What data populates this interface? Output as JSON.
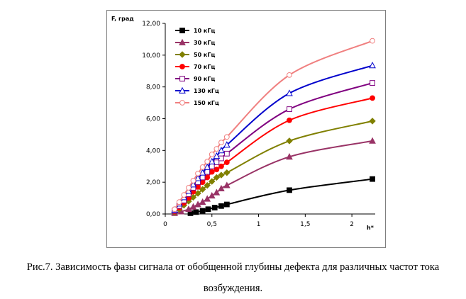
{
  "chart_data": {
    "type": "line",
    "ylabel": "F, град",
    "xlabel": "h*",
    "xlim": [
      0,
      2.25
    ],
    "ylim": [
      0,
      12
    ],
    "x_ticks": [
      0,
      0.5,
      1,
      1.5,
      2
    ],
    "x_tick_labels": [
      "0",
      "0,5",
      "1",
      "1,5",
      "2"
    ],
    "y_ticks": [
      0,
      2,
      4,
      6,
      8,
      10,
      12
    ],
    "y_tick_labels": [
      "0,00",
      "2,00",
      "4,00",
      "6,00",
      "8,00",
      "10,00",
      "12,00"
    ],
    "grid": false,
    "legend_position": "top-left",
    "series": [
      {
        "name": "10 кГц",
        "color": "#000000",
        "marker": "square-filled",
        "x": [
          0.27,
          0.33,
          0.4,
          0.46,
          0.53,
          0.6,
          0.66,
          1.33,
          2.22
        ],
        "y": [
          0.05,
          0.12,
          0.2,
          0.3,
          0.4,
          0.5,
          0.6,
          1.5,
          2.2
        ]
      },
      {
        "name": "30 кГц",
        "color": "#993366",
        "marker": "triangle-filled",
        "x": [
          0.1,
          0.17,
          0.25,
          0.3,
          0.35,
          0.4,
          0.45,
          0.5,
          0.55,
          0.6,
          0.66,
          1.33,
          2.22
        ],
        "y": [
          0.05,
          0.15,
          0.3,
          0.45,
          0.6,
          0.75,
          0.95,
          1.15,
          1.35,
          1.6,
          1.8,
          3.6,
          4.6
        ]
      },
      {
        "name": "50 кГц",
        "color": "#808000",
        "marker": "diamond-filled",
        "x": [
          0.1,
          0.15,
          0.2,
          0.25,
          0.3,
          0.35,
          0.4,
          0.45,
          0.5,
          0.55,
          0.6,
          0.66,
          1.33,
          2.22
        ],
        "y": [
          0.1,
          0.3,
          0.55,
          0.8,
          1.05,
          1.3,
          1.55,
          1.8,
          2.05,
          2.3,
          2.45,
          2.6,
          4.6,
          5.85
        ]
      },
      {
        "name": "70 кГц",
        "color": "#ff0000",
        "marker": "circle-filled",
        "x": [
          0.1,
          0.15,
          0.2,
          0.25,
          0.3,
          0.35,
          0.4,
          0.45,
          0.5,
          0.55,
          0.6,
          0.66,
          1.33,
          2.22
        ],
        "y": [
          0.15,
          0.4,
          0.7,
          1.0,
          1.4,
          1.7,
          2.0,
          2.3,
          2.65,
          2.8,
          3.0,
          3.25,
          5.9,
          7.3
        ]
      },
      {
        "name": "90 кГц",
        "color": "#800080",
        "marker": "square-open",
        "x": [
          0.1,
          0.15,
          0.2,
          0.25,
          0.3,
          0.35,
          0.4,
          0.45,
          0.5,
          0.55,
          0.6,
          0.66,
          1.33,
          2.22
        ],
        "y": [
          0.2,
          0.5,
          0.85,
          1.25,
          1.65,
          2.0,
          2.3,
          2.65,
          3.0,
          3.25,
          3.5,
          3.8,
          6.6,
          8.25
        ]
      },
      {
        "name": "130 кГц",
        "color": "#0000cc",
        "marker": "triangle-open",
        "x": [
          0.1,
          0.15,
          0.2,
          0.25,
          0.3,
          0.35,
          0.4,
          0.45,
          0.5,
          0.55,
          0.6,
          0.66,
          1.33,
          2.22
        ],
        "y": [
          0.25,
          0.65,
          1.05,
          1.45,
          1.85,
          2.25,
          2.6,
          2.95,
          3.3,
          3.65,
          4.0,
          4.35,
          7.6,
          9.35
        ]
      },
      {
        "name": "150 кГц",
        "color": "#f08080",
        "marker": "circle-open",
        "x": [
          0.1,
          0.15,
          0.2,
          0.25,
          0.3,
          0.35,
          0.4,
          0.45,
          0.5,
          0.55,
          0.6,
          0.66,
          1.33,
          2.22
        ],
        "y": [
          0.3,
          0.75,
          1.2,
          1.65,
          2.1,
          2.55,
          2.95,
          3.3,
          3.75,
          4.1,
          4.5,
          4.85,
          8.75,
          10.9
        ]
      }
    ]
  },
  "caption": {
    "line1": "Рис.7. Зависимость фазы сигнала от обобщенной глубины дефекта для различных частот тока",
    "line2": "возбуждения."
  }
}
